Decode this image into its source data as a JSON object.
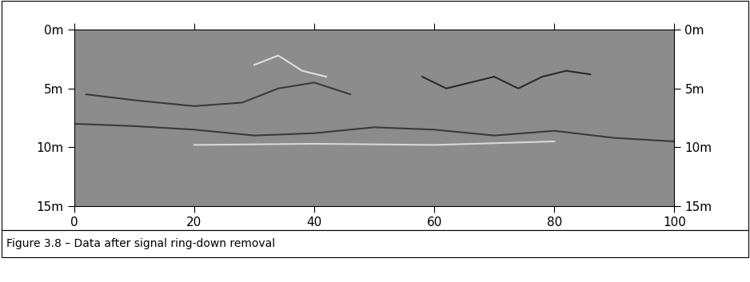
{
  "chart_data": {
    "type": "radargram",
    "caption": "Figure 3.8 – Data after signal ring-down removal",
    "color": "#8c8c8c",
    "xlim": [
      0,
      100
    ],
    "xticks": [
      0,
      20,
      40,
      60,
      80,
      100
    ],
    "ylim": [
      15,
      0
    ],
    "yticks": [
      {
        "value": 0,
        "label": "0m"
      },
      {
        "value": 5,
        "label": "5m"
      },
      {
        "value": 10,
        "label": "10m"
      },
      {
        "value": 15,
        "label": "15m"
      }
    ],
    "series": [
      {
        "color": "#3a3a3a",
        "x": [
          2,
          10,
          20,
          28,
          34,
          40,
          46
        ],
        "values": [
          5.5,
          6,
          6.5,
          6.2,
          5,
          4.5,
          5.5
        ]
      },
      {
        "color": "#3a3a3a",
        "x": [
          0,
          10,
          20,
          30,
          40,
          50,
          60,
          70,
          80,
          90,
          100
        ],
        "values": [
          8,
          8.2,
          8.5,
          9,
          8.8,
          8.3,
          8.5,
          9,
          8.6,
          9.2,
          9.5
        ]
      },
      {
        "color": "#d8d8d8",
        "x": [
          20,
          40,
          60,
          80
        ],
        "values": [
          9.8,
          9.7,
          9.8,
          9.5
        ]
      },
      {
        "color": "#2a2a2a",
        "x": [
          58,
          62,
          66,
          70,
          74,
          78,
          82,
          86
        ],
        "values": [
          4,
          5,
          4.5,
          4,
          5,
          4,
          3.5,
          3.8
        ]
      },
      {
        "color": "#e0e0e0",
        "x": [
          30,
          34,
          38,
          42
        ],
        "values": [
          3,
          2.2,
          3.5,
          4
        ]
      }
    ]
  }
}
